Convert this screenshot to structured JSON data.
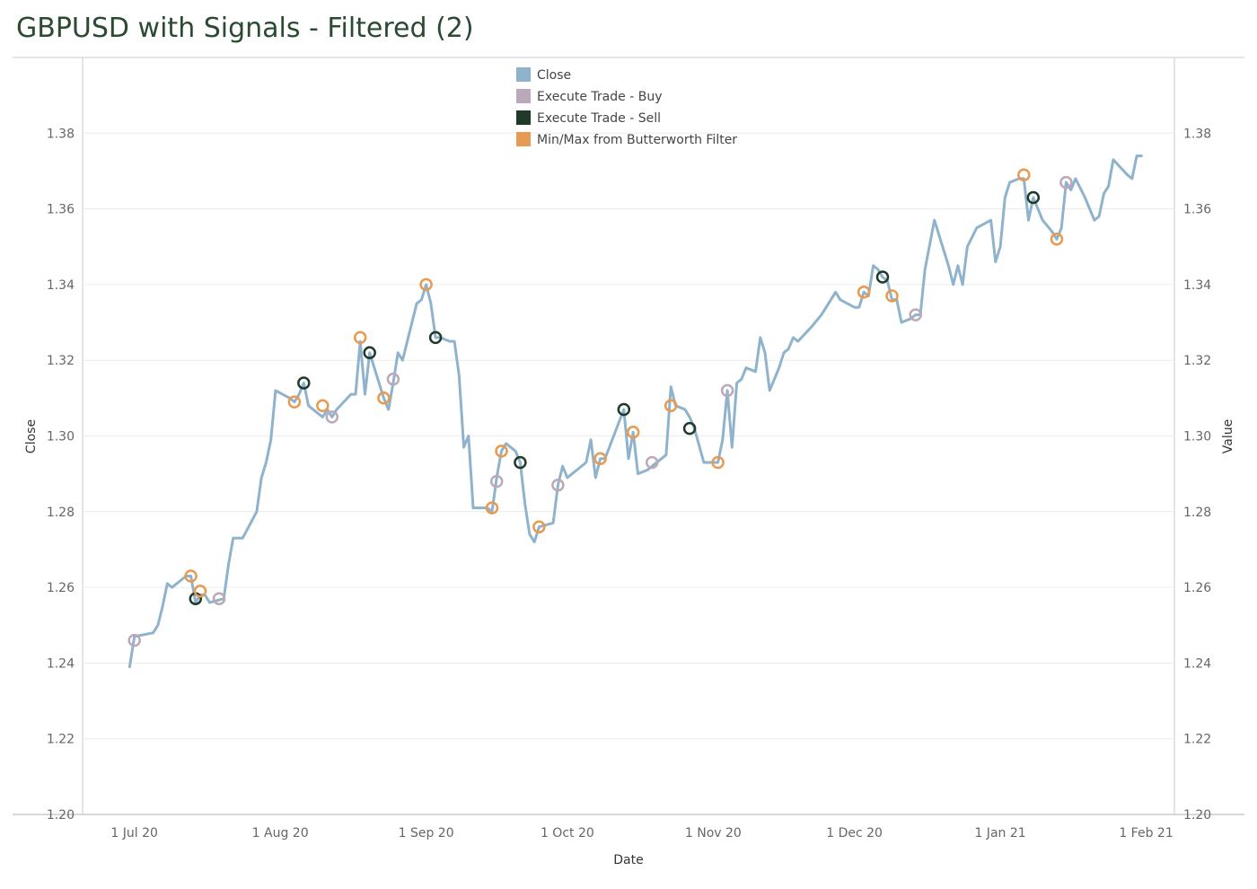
{
  "page": {
    "title": "GBPUSD with Signals - Filtered (2)"
  },
  "colors": {
    "close": "#8fb3cc",
    "buy": "#bba8b8",
    "sell": "#1f3a29",
    "minmax": "#e79a52",
    "grid": "#ececec",
    "axis": "#999999"
  },
  "chart_data": {
    "type": "line",
    "title": "GBPUSD with Signals - Filtered (2)",
    "xlabel": "Date",
    "ylabel": "Close",
    "ylabel_right": "Value",
    "xlim": [
      "2020-06-20",
      "2021-02-07"
    ],
    "ylim": [
      1.2,
      1.4
    ],
    "y_ticks": [
      1.2,
      1.22,
      1.24,
      1.26,
      1.28,
      1.3,
      1.32,
      1.34,
      1.36,
      1.38
    ],
    "y_tick_labels": [
      "1.20",
      "1.22",
      "1.24",
      "1.26",
      "1.28",
      "1.30",
      "1.32",
      "1.34",
      "1.36",
      "1.38"
    ],
    "x_ticks": [
      "2020-07-01",
      "2020-08-01",
      "2020-09-01",
      "2020-10-01",
      "2020-11-01",
      "2020-12-01",
      "2021-01-01",
      "2021-02-01"
    ],
    "x_tick_labels": [
      "1 Jul 20",
      "1 Aug 20",
      "1 Sep 20",
      "1 Oct 20",
      "1 Nov 20",
      "1 Dec 20",
      "1 Jan 21",
      "1 Feb 21"
    ],
    "grid": true,
    "legend_position": "top-center",
    "legend": [
      "Close",
      "Execute Trade - Buy",
      "Execute Trade - Sell",
      "Min/Max from Butterworth Filter"
    ],
    "series": [
      {
        "name": "Close",
        "kind": "line",
        "points": [
          [
            "2020-06-30",
            1.239
          ],
          [
            "2020-07-01",
            1.247
          ],
          [
            "2020-07-05",
            1.248
          ],
          [
            "2020-07-06",
            1.25
          ],
          [
            "2020-07-07",
            1.255
          ],
          [
            "2020-07-08",
            1.261
          ],
          [
            "2020-07-09",
            1.26
          ],
          [
            "2020-07-12",
            1.263
          ],
          [
            "2020-07-13",
            1.263
          ],
          [
            "2020-07-14",
            1.256
          ],
          [
            "2020-07-15",
            1.258
          ],
          [
            "2020-07-16",
            1.258
          ],
          [
            "2020-07-17",
            1.256
          ],
          [
            "2020-07-20",
            1.257
          ],
          [
            "2020-07-21",
            1.266
          ],
          [
            "2020-07-22",
            1.273
          ],
          [
            "2020-07-24",
            1.273
          ],
          [
            "2020-07-27",
            1.28
          ],
          [
            "2020-07-28",
            1.289
          ],
          [
            "2020-07-29",
            1.293
          ],
          [
            "2020-07-30",
            1.299
          ],
          [
            "2020-07-31",
            1.312
          ],
          [
            "2020-08-03",
            1.31
          ],
          [
            "2020-08-04",
            1.309
          ],
          [
            "2020-08-05",
            1.311
          ],
          [
            "2020-08-06",
            1.314
          ],
          [
            "2020-08-07",
            1.308
          ],
          [
            "2020-08-10",
            1.305
          ],
          [
            "2020-08-11",
            1.307
          ],
          [
            "2020-08-12",
            1.305
          ],
          [
            "2020-08-13",
            1.307
          ],
          [
            "2020-08-16",
            1.311
          ],
          [
            "2020-08-17",
            1.311
          ],
          [
            "2020-08-18",
            1.325
          ],
          [
            "2020-08-19",
            1.311
          ],
          [
            "2020-08-20",
            1.322
          ],
          [
            "2020-08-23",
            1.31
          ],
          [
            "2020-08-24",
            1.307
          ],
          [
            "2020-08-25",
            1.314
          ],
          [
            "2020-08-26",
            1.322
          ],
          [
            "2020-08-27",
            1.32
          ],
          [
            "2020-08-30",
            1.335
          ],
          [
            "2020-08-31",
            1.336
          ],
          [
            "2020-09-01",
            1.34
          ],
          [
            "2020-09-02",
            1.335
          ],
          [
            "2020-09-03",
            1.326
          ],
          [
            "2020-09-04",
            1.326
          ],
          [
            "2020-09-06",
            1.325
          ],
          [
            "2020-09-07",
            1.325
          ],
          [
            "2020-09-08",
            1.316
          ],
          [
            "2020-09-09",
            1.297
          ],
          [
            "2020-09-10",
            1.3
          ],
          [
            "2020-09-11",
            1.281
          ],
          [
            "2020-09-14",
            1.281
          ],
          [
            "2020-09-15",
            1.28
          ],
          [
            "2020-09-16",
            1.289
          ],
          [
            "2020-09-17",
            1.296
          ],
          [
            "2020-09-18",
            1.298
          ],
          [
            "2020-09-20",
            1.296
          ],
          [
            "2020-09-21",
            1.293
          ],
          [
            "2020-09-22",
            1.282
          ],
          [
            "2020-09-23",
            1.274
          ],
          [
            "2020-09-24",
            1.272
          ],
          [
            "2020-09-25",
            1.276
          ],
          [
            "2020-09-28",
            1.277
          ],
          [
            "2020-09-29",
            1.287
          ],
          [
            "2020-09-30",
            1.292
          ],
          [
            "2020-10-01",
            1.289
          ],
          [
            "2020-10-05",
            1.293
          ],
          [
            "2020-10-06",
            1.299
          ],
          [
            "2020-10-07",
            1.289
          ],
          [
            "2020-10-08",
            1.294
          ],
          [
            "2020-10-09",
            1.294
          ],
          [
            "2020-10-13",
            1.307
          ],
          [
            "2020-10-14",
            1.294
          ],
          [
            "2020-10-15",
            1.301
          ],
          [
            "2020-10-16",
            1.29
          ],
          [
            "2020-10-18",
            1.291
          ],
          [
            "2020-10-19",
            1.292
          ],
          [
            "2020-10-22",
            1.295
          ],
          [
            "2020-10-23",
            1.313
          ],
          [
            "2020-10-24",
            1.308
          ],
          [
            "2020-10-26",
            1.307
          ],
          [
            "2020-10-27",
            1.305
          ],
          [
            "2020-10-28",
            1.302
          ],
          [
            "2020-10-30",
            1.293
          ],
          [
            "2020-11-02",
            1.293
          ],
          [
            "2020-11-03",
            1.299
          ],
          [
            "2020-11-04",
            1.312
          ],
          [
            "2020-11-05",
            1.297
          ],
          [
            "2020-11-06",
            1.314
          ],
          [
            "2020-11-07",
            1.315
          ],
          [
            "2020-11-08",
            1.318
          ],
          [
            "2020-11-10",
            1.317
          ],
          [
            "2020-11-11",
            1.326
          ],
          [
            "2020-11-12",
            1.322
          ],
          [
            "2020-11-13",
            1.312
          ],
          [
            "2020-11-15",
            1.318
          ],
          [
            "2020-11-16",
            1.322
          ],
          [
            "2020-11-17",
            1.323
          ],
          [
            "2020-11-18",
            1.326
          ],
          [
            "2020-11-19",
            1.325
          ],
          [
            "2020-11-22",
            1.329
          ],
          [
            "2020-11-24",
            1.332
          ],
          [
            "2020-11-26",
            1.336
          ],
          [
            "2020-11-27",
            1.338
          ],
          [
            "2020-11-28",
            1.336
          ],
          [
            "2020-12-01",
            1.334
          ],
          [
            "2020-12-02",
            1.334
          ],
          [
            "2020-12-03",
            1.338
          ],
          [
            "2020-12-04",
            1.337
          ],
          [
            "2020-12-05",
            1.345
          ],
          [
            "2020-12-06",
            1.344
          ],
          [
            "2020-12-07",
            1.342
          ],
          [
            "2020-12-08",
            1.341
          ],
          [
            "2020-12-09",
            1.336
          ],
          [
            "2020-12-10",
            1.336
          ],
          [
            "2020-12-11",
            1.33
          ],
          [
            "2020-12-13",
            1.331
          ],
          [
            "2020-12-14",
            1.332
          ],
          [
            "2020-12-15",
            1.332
          ],
          [
            "2020-12-16",
            1.344
          ],
          [
            "2020-12-18",
            1.357
          ],
          [
            "2020-12-21",
            1.345
          ],
          [
            "2020-12-22",
            1.34
          ],
          [
            "2020-12-23",
            1.345
          ],
          [
            "2020-12-24",
            1.34
          ],
          [
            "2020-12-25",
            1.35
          ],
          [
            "2020-12-27",
            1.355
          ],
          [
            "2020-12-30",
            1.357
          ],
          [
            "2020-12-31",
            1.346
          ],
          [
            "2021-01-01",
            1.35
          ],
          [
            "2021-01-02",
            1.363
          ],
          [
            "2021-01-03",
            1.367
          ],
          [
            "2021-01-05",
            1.368
          ],
          [
            "2021-01-06",
            1.368
          ],
          [
            "2021-01-07",
            1.357
          ],
          [
            "2021-01-08",
            1.363
          ],
          [
            "2021-01-10",
            1.357
          ],
          [
            "2021-01-12",
            1.354
          ],
          [
            "2021-01-13",
            1.352
          ],
          [
            "2021-01-14",
            1.355
          ],
          [
            "2021-01-15",
            1.367
          ],
          [
            "2021-01-16",
            1.365
          ],
          [
            "2021-01-17",
            1.368
          ],
          [
            "2021-01-19",
            1.363
          ],
          [
            "2021-01-21",
            1.357
          ],
          [
            "2021-01-22",
            1.358
          ],
          [
            "2021-01-23",
            1.364
          ],
          [
            "2021-01-24",
            1.366
          ],
          [
            "2021-01-25",
            1.373
          ],
          [
            "2021-01-28",
            1.369
          ],
          [
            "2021-01-29",
            1.368
          ],
          [
            "2021-01-30",
            1.374
          ],
          [
            "2021-01-31",
            1.374
          ]
        ]
      },
      {
        "name": "Execute Trade - Buy",
        "kind": "marker",
        "points": [
          [
            "2020-07-01",
            1.246
          ],
          [
            "2020-07-19",
            1.257
          ],
          [
            "2020-08-12",
            1.305
          ],
          [
            "2020-08-25",
            1.315
          ],
          [
            "2020-09-16",
            1.288
          ],
          [
            "2020-09-29",
            1.287
          ],
          [
            "2020-10-19",
            1.293
          ],
          [
            "2020-11-04",
            1.312
          ],
          [
            "2020-12-14",
            1.332
          ],
          [
            "2021-01-15",
            1.367
          ]
        ]
      },
      {
        "name": "Execute Trade - Sell",
        "kind": "marker",
        "points": [
          [
            "2020-07-14",
            1.257
          ],
          [
            "2020-08-06",
            1.314
          ],
          [
            "2020-08-20",
            1.322
          ],
          [
            "2020-09-03",
            1.326
          ],
          [
            "2020-09-21",
            1.293
          ],
          [
            "2020-10-13",
            1.307
          ],
          [
            "2020-10-27",
            1.302
          ],
          [
            "2020-12-07",
            1.342
          ],
          [
            "2021-01-08",
            1.363
          ]
        ]
      },
      {
        "name": "Min/Max from Butterworth Filter",
        "kind": "marker",
        "points": [
          [
            "2020-07-13",
            1.263
          ],
          [
            "2020-07-15",
            1.259
          ],
          [
            "2020-08-04",
            1.309
          ],
          [
            "2020-08-10",
            1.308
          ],
          [
            "2020-08-18",
            1.326
          ],
          [
            "2020-08-23",
            1.31
          ],
          [
            "2020-09-01",
            1.34
          ],
          [
            "2020-09-15",
            1.281
          ],
          [
            "2020-09-17",
            1.296
          ],
          [
            "2020-09-25",
            1.276
          ],
          [
            "2020-10-08",
            1.294
          ],
          [
            "2020-10-15",
            1.301
          ],
          [
            "2020-10-23",
            1.308
          ],
          [
            "2020-11-02",
            1.293
          ],
          [
            "2020-12-03",
            1.338
          ],
          [
            "2020-12-09",
            1.337
          ],
          [
            "2021-01-06",
            1.369
          ],
          [
            "2021-01-13",
            1.352
          ]
        ]
      }
    ]
  }
}
